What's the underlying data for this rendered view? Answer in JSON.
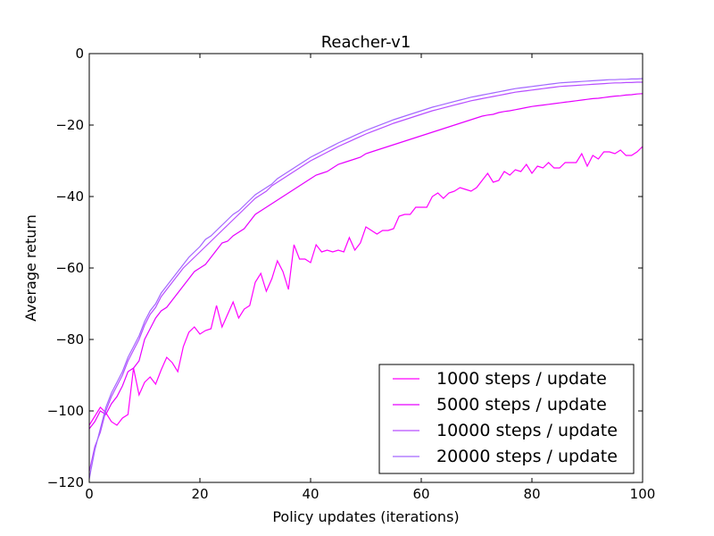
{
  "chart_data": {
    "type": "line",
    "title": "Reacher-v1",
    "xlabel": "Policy updates (iterations)",
    "ylabel": "Average return",
    "xlim": [
      0,
      100
    ],
    "ylim": [
      -120,
      0
    ],
    "xticks": [
      0,
      20,
      40,
      60,
      80,
      100
    ],
    "yticks": [
      0,
      -20,
      -40,
      -60,
      -80,
      -100,
      -120
    ],
    "grid": false,
    "legend_position": "lower-right",
    "series": [
      {
        "name": "1000 steps / update",
        "color": "#ff00ff",
        "x": [
          0,
          1,
          2,
          3,
          4,
          5,
          6,
          7,
          8,
          9,
          10,
          11,
          12,
          13,
          14,
          15,
          16,
          17,
          18,
          19,
          20,
          21,
          22,
          23,
          24,
          25,
          26,
          27,
          28,
          29,
          30,
          31,
          32,
          33,
          34,
          35,
          36,
          37,
          38,
          39,
          40,
          41,
          42,
          43,
          44,
          45,
          46,
          47,
          48,
          49,
          50,
          51,
          52,
          53,
          54,
          55,
          56,
          57,
          58,
          59,
          60,
          61,
          62,
          63,
          64,
          65,
          66,
          67,
          68,
          69,
          70,
          71,
          72,
          73,
          74,
          75,
          76,
          77,
          78,
          79,
          80,
          81,
          82,
          83,
          84,
          85,
          86,
          87,
          88,
          89,
          90,
          91,
          92,
          93,
          94,
          95,
          96,
          97,
          98,
          99,
          100
        ],
        "values": [
          -104,
          -101.5,
          -99,
          -100.5,
          -103,
          -104,
          -102,
          -101,
          -88,
          -95.5,
          -92,
          -90.5,
          -92.5,
          -88.5,
          -85,
          -86.5,
          -89,
          -82,
          -78,
          -76.5,
          -78.5,
          -77.5,
          -77,
          -70.5,
          -76.5,
          -73,
          -69.5,
          -74,
          -71.5,
          -70.5,
          -64,
          -61.5,
          -66.5,
          -63,
          -58,
          -61,
          -66,
          -53.5,
          -57.5,
          -57.5,
          -58.5,
          -53.5,
          -55.5,
          -55,
          -55.5,
          -55,
          -55.5,
          -51.5,
          -55,
          -53,
          -48.5,
          -49.5,
          -50.5,
          -49.5,
          -49.5,
          -49,
          -45.5,
          -45,
          -45,
          -43,
          -43,
          -43,
          -40,
          -39,
          -40.5,
          -39,
          -38.5,
          -37.5,
          -38,
          -38.5,
          -37.5,
          -35.5,
          -33.5,
          -36,
          -35.5,
          -33,
          -34,
          -32.5,
          -33,
          -31,
          -33.5,
          -31.5,
          -32,
          -30.5,
          -32,
          -32,
          -30.5,
          -30.5,
          -30.5,
          -28,
          -31.5,
          -28.5,
          -29.5,
          -27.5,
          -27.5,
          -28,
          -27,
          -28.5,
          -28.5,
          -27.5,
          -26
        ]
      },
      {
        "name": "5000 steps / update",
        "color": "#e600ff",
        "x": [
          0,
          1,
          2,
          3,
          4,
          5,
          6,
          7,
          8,
          9,
          10,
          11,
          12,
          13,
          14,
          15,
          16,
          17,
          18,
          19,
          20,
          21,
          22,
          23,
          24,
          25,
          26,
          27,
          28,
          29,
          30,
          31,
          32,
          33,
          34,
          35,
          36,
          37,
          38,
          39,
          40,
          41,
          42,
          43,
          44,
          45,
          46,
          47,
          48,
          49,
          50,
          51,
          52,
          53,
          54,
          55,
          56,
          57,
          58,
          59,
          60,
          61,
          62,
          63,
          64,
          65,
          66,
          67,
          68,
          69,
          70,
          71,
          72,
          73,
          74,
          75,
          76,
          77,
          78,
          79,
          80,
          81,
          82,
          83,
          84,
          85,
          86,
          87,
          88,
          89,
          90,
          91,
          92,
          93,
          94,
          95,
          96,
          97,
          98,
          99,
          100
        ],
        "values": [
          -105,
          -103,
          -100,
          -101,
          -98,
          -96,
          -93,
          -89,
          -88,
          -86,
          -80,
          -77,
          -74,
          -72,
          -71,
          -69,
          -67,
          -65,
          -63,
          -61,
          -60,
          -59,
          -57,
          -55,
          -53,
          -52.5,
          -51,
          -50,
          -49,
          -47,
          -45,
          -44,
          -43,
          -42,
          -41,
          -40,
          -39,
          -38,
          -37,
          -36,
          -35,
          -34,
          -33.5,
          -33,
          -32,
          -31,
          -30.5,
          -30,
          -29.5,
          -29,
          -28,
          -27.5,
          -27,
          -26.5,
          -26,
          -25.5,
          -25,
          -24.5,
          -24,
          -23.5,
          -23,
          -22.5,
          -22,
          -21.5,
          -21,
          -20.5,
          -20,
          -19.5,
          -19,
          -18.5,
          -18,
          -17.5,
          -17.2,
          -17,
          -16.5,
          -16.2,
          -16,
          -15.7,
          -15.4,
          -15.1,
          -14.8,
          -14.6,
          -14.4,
          -14.2,
          -14,
          -13.8,
          -13.6,
          -13.4,
          -13.2,
          -13,
          -12.8,
          -12.6,
          -12.5,
          -12.3,
          -12.1,
          -11.9,
          -11.8,
          -11.6,
          -11.5,
          -11.3,
          -11.2
        ]
      },
      {
        "name": "10000 steps / update",
        "color": "#b84dff",
        "x": [
          0,
          1,
          2,
          3,
          4,
          5,
          6,
          7,
          8,
          9,
          10,
          11,
          12,
          13,
          14,
          15,
          16,
          17,
          18,
          19,
          20,
          21,
          22,
          23,
          24,
          25,
          26,
          27,
          28,
          29,
          30,
          31,
          32,
          33,
          34,
          35,
          36,
          37,
          38,
          39,
          40,
          41,
          42,
          43,
          44,
          45,
          46,
          47,
          48,
          49,
          50,
          51,
          52,
          53,
          54,
          55,
          56,
          57,
          58,
          59,
          60,
          61,
          62,
          63,
          64,
          65,
          66,
          67,
          68,
          69,
          70,
          71,
          72,
          73,
          74,
          75,
          76,
          77,
          78,
          79,
          80,
          81,
          82,
          83,
          84,
          85,
          86,
          87,
          88,
          89,
          90,
          91,
          92,
          93,
          94,
          95,
          96,
          97,
          98,
          99,
          100
        ],
        "values": [
          -117,
          -110,
          -106,
          -100,
          -96,
          -93,
          -90,
          -86,
          -83,
          -80,
          -76,
          -73,
          -71,
          -68,
          -66,
          -64,
          -62,
          -60,
          -58.5,
          -57,
          -55.5,
          -54,
          -52.5,
          -51,
          -49.5,
          -48,
          -46.5,
          -45,
          -43.5,
          -42,
          -40.5,
          -39.5,
          -38.5,
          -37,
          -36,
          -35,
          -34,
          -33,
          -32,
          -31,
          -30,
          -29.2,
          -28.4,
          -27.6,
          -26.8,
          -26,
          -25.3,
          -24.6,
          -23.9,
          -23.2,
          -22.5,
          -21.9,
          -21.3,
          -20.7,
          -20.1,
          -19.5,
          -19,
          -18.5,
          -18,
          -17.5,
          -17,
          -16.5,
          -16,
          -15.6,
          -15.2,
          -14.8,
          -14.4,
          -14,
          -13.6,
          -13.2,
          -12.9,
          -12.6,
          -12.3,
          -12,
          -11.7,
          -11.4,
          -11.1,
          -10.8,
          -10.6,
          -10.4,
          -10.2,
          -10,
          -9.8,
          -9.6,
          -9.4,
          -9.2,
          -9.1,
          -9,
          -8.9,
          -8.8,
          -8.7,
          -8.6,
          -8.5,
          -8.4,
          -8.3,
          -8.2,
          -8.2,
          -8.1,
          -8.1,
          -8,
          -8
        ]
      },
      {
        "name": "20000 steps / update",
        "color": "#a366ff",
        "x": [
          0,
          1,
          2,
          3,
          4,
          5,
          6,
          7,
          8,
          9,
          10,
          11,
          12,
          13,
          14,
          15,
          16,
          17,
          18,
          19,
          20,
          21,
          22,
          23,
          24,
          25,
          26,
          27,
          28,
          29,
          30,
          31,
          32,
          33,
          34,
          35,
          36,
          37,
          38,
          39,
          40,
          41,
          42,
          43,
          44,
          45,
          46,
          47,
          48,
          49,
          50,
          51,
          52,
          53,
          54,
          55,
          56,
          57,
          58,
          59,
          60,
          61,
          62,
          63,
          64,
          65,
          66,
          67,
          68,
          69,
          70,
          71,
          72,
          73,
          74,
          75,
          76,
          77,
          78,
          79,
          80,
          81,
          82,
          83,
          84,
          85,
          86,
          87,
          88,
          89,
          90,
          91,
          92,
          93,
          94,
          95,
          96,
          97,
          98,
          99,
          100
        ],
        "values": [
          -119,
          -111,
          -105,
          -99,
          -95,
          -92,
          -89,
          -85,
          -82,
          -79,
          -75,
          -72,
          -70,
          -67,
          -65,
          -63,
          -61,
          -59,
          -57,
          -55.5,
          -54,
          -52,
          -51,
          -49.5,
          -48,
          -46.5,
          -45,
          -44,
          -42.5,
          -41,
          -39.5,
          -38.5,
          -37.5,
          -36.5,
          -35,
          -34,
          -33,
          -32,
          -31,
          -30,
          -29,
          -28.2,
          -27.4,
          -26.6,
          -25.8,
          -25,
          -24.3,
          -23.6,
          -22.9,
          -22.2,
          -21.5,
          -20.9,
          -20.3,
          -19.7,
          -19.1,
          -18.5,
          -18,
          -17.5,
          -17,
          -16.5,
          -16,
          -15.5,
          -15,
          -14.6,
          -14.2,
          -13.8,
          -13.4,
          -13,
          -12.6,
          -12.2,
          -11.9,
          -11.6,
          -11.3,
          -11,
          -10.7,
          -10.4,
          -10.1,
          -9.8,
          -9.6,
          -9.4,
          -9.2,
          -9,
          -8.8,
          -8.6,
          -8.4,
          -8.2,
          -8.1,
          -8,
          -7.9,
          -7.8,
          -7.7,
          -7.6,
          -7.5,
          -7.4,
          -7.3,
          -7.3,
          -7.2,
          -7.2,
          -7.1,
          -7.1,
          -7
        ]
      }
    ]
  }
}
